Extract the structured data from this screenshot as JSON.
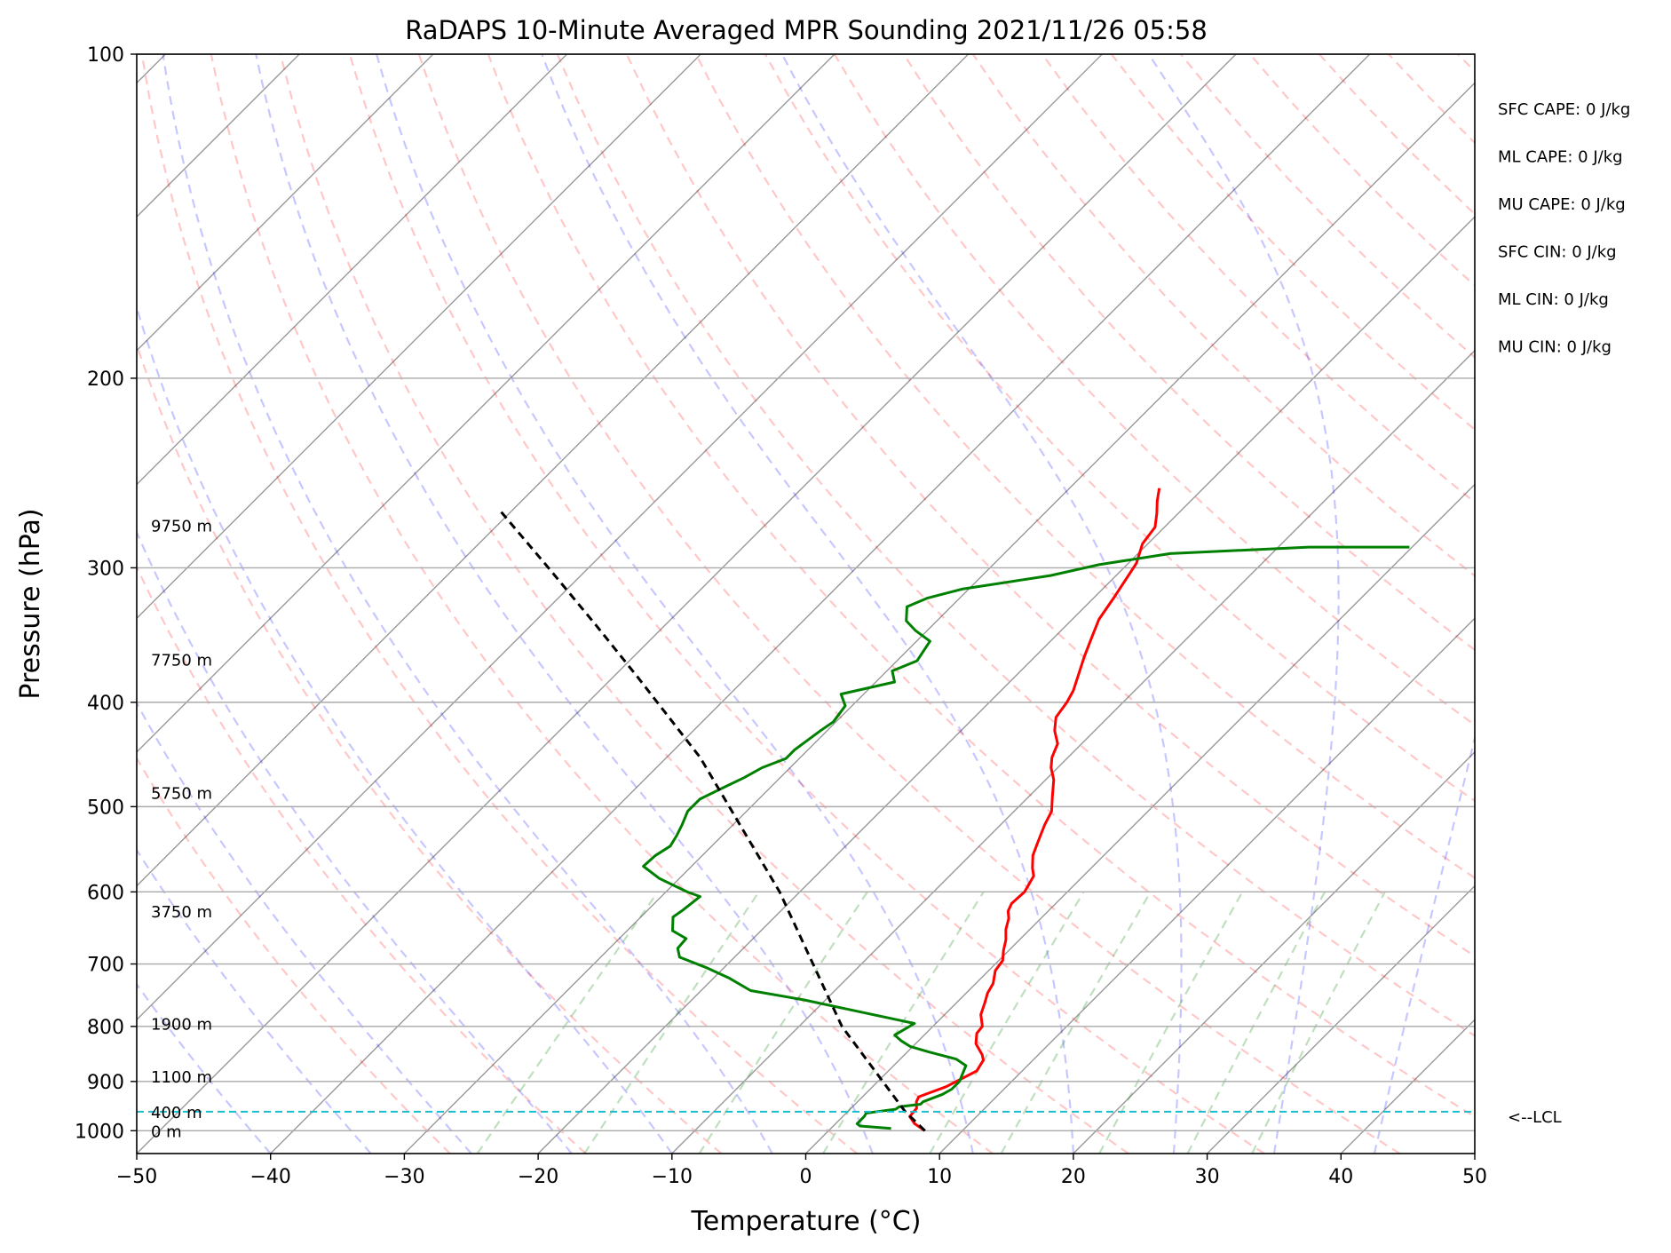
{
  "chart_data": {
    "type": "line",
    "title": "RaDAPS 10-Minute Averaged MPR Sounding 2021/11/26 05:58",
    "xlabel": "Temperature (°C)",
    "ylabel": "Pressure (hPa)",
    "xlim": [
      -50,
      50
    ],
    "ylim": [
      1050,
      100
    ],
    "y_scale": "log",
    "skew": "skew-T",
    "grid": true,
    "x_ticks": [
      "−50",
      "−40",
      "−30",
      "−20",
      "−10",
      "0",
      "10",
      "20",
      "30",
      "40",
      "50"
    ],
    "y_ticks": [
      "100",
      "200",
      "300",
      "400",
      "500",
      "600",
      "700",
      "800",
      "900",
      "1000"
    ],
    "height_labels": [
      {
        "text": "0 m",
        "p": 1000
      },
      {
        "text": "400 m",
        "p": 960
      },
      {
        "text": "1100 m",
        "p": 890
      },
      {
        "text": "1900 m",
        "p": 795
      },
      {
        "text": "3750 m",
        "p": 625
      },
      {
        "text": "5750 m",
        "p": 485
      },
      {
        "text": "7750 m",
        "p": 365
      },
      {
        "text": "9750 m",
        "p": 274
      }
    ],
    "indices": [
      "SFC CAPE: 0 J/kg",
      "ML CAPE: 0 J/kg",
      "MU CAPE: 0 J/kg",
      "SFC CIN: 0 J/kg",
      "ML CIN: 0 J/kg",
      "MU CIN: 0 J/kg"
    ],
    "lcl": {
      "label": "<--LCL",
      "p": 960,
      "color": "#17becf"
    },
    "series": [
      {
        "color": "#ff0000",
        "points": [
          [
            7.2,
            1000
          ],
          [
            5.9,
            985
          ],
          [
            5.0,
            970
          ],
          [
            4.9,
            953
          ],
          [
            4.4,
            940
          ],
          [
            4.2,
            930
          ],
          [
            5.5,
            910
          ],
          [
            6.6,
            880
          ],
          [
            6.3,
            860
          ],
          [
            5.8,
            850
          ],
          [
            4.5,
            830
          ],
          [
            3.8,
            812
          ],
          [
            3.7,
            800
          ],
          [
            2.7,
            780
          ],
          [
            2.1,
            760
          ],
          [
            1.6,
            745
          ],
          [
            1.3,
            730
          ],
          [
            0.5,
            710
          ],
          [
            0.3,
            695
          ],
          [
            -0.4,
            680
          ],
          [
            -1.0,
            665
          ],
          [
            -1.8,
            650
          ],
          [
            -2.4,
            635
          ],
          [
            -3.0,
            625
          ],
          [
            -3.3,
            615
          ],
          [
            -3.2,
            600
          ],
          [
            -3.7,
            580
          ],
          [
            -4.4,
            570
          ],
          [
            -5.3,
            555
          ],
          [
            -5.9,
            540
          ],
          [
            -6.7,
            520
          ],
          [
            -7.2,
            505
          ],
          [
            -8.2,
            490
          ],
          [
            -9.4,
            472
          ],
          [
            -10.5,
            460
          ],
          [
            -11.2,
            450
          ],
          [
            -11.8,
            437
          ],
          [
            -13.0,
            425
          ],
          [
            -13.9,
            413
          ],
          [
            -14.2,
            400
          ],
          [
            -14.6,
            390
          ],
          [
            -15.4,
            377
          ],
          [
            -16.3,
            363
          ],
          [
            -17.2,
            348
          ],
          [
            -18.0,
            335
          ],
          [
            -18.5,
            320
          ],
          [
            -19.0,
            307
          ],
          [
            -19.4,
            297
          ],
          [
            -20.4,
            285
          ],
          [
            -20.7,
            275
          ],
          [
            -21.6,
            267
          ],
          [
            -22.5,
            260
          ],
          [
            -23.3,
            253
          ]
        ]
      },
      {
        "color": "#008000",
        "points": [
          [
            4.5,
            995
          ],
          [
            2.0,
            990
          ],
          [
            1.6,
            985
          ],
          [
            1.6,
            970
          ],
          [
            1.5,
            963
          ],
          [
            2.2,
            960
          ],
          [
            3.4,
            955
          ],
          [
            3.5,
            950
          ],
          [
            4.9,
            945
          ],
          [
            4.9,
            940
          ],
          [
            5.8,
            925
          ],
          [
            6.1,
            915
          ],
          [
            6.1,
            900
          ],
          [
            5.4,
            870
          ],
          [
            4.2,
            858
          ],
          [
            1.6,
            845
          ],
          [
            -0.2,
            835
          ],
          [
            -1.3,
            825
          ],
          [
            -2.2,
            815
          ],
          [
            -1.6,
            795
          ],
          [
            -6.4,
            776
          ],
          [
            -11.6,
            756
          ],
          [
            -16.3,
            741
          ],
          [
            -18.9,
            721
          ],
          [
            -21.4,
            705
          ],
          [
            -24.1,
            690
          ],
          [
            -24.9,
            677
          ],
          [
            -25.0,
            663
          ],
          [
            -26.6,
            652
          ],
          [
            -27.6,
            633
          ],
          [
            -27.4,
            625
          ],
          [
            -27.1,
            606
          ],
          [
            -28.4,
            600
          ],
          [
            -31.5,
            583
          ],
          [
            -33.6,
            568
          ],
          [
            -33.5,
            555
          ],
          [
            -33.1,
            544
          ],
          [
            -33.4,
            532
          ],
          [
            -33.8,
            520
          ],
          [
            -34.4,
            505
          ],
          [
            -34.4,
            492
          ],
          [
            -33.5,
            480
          ],
          [
            -32.7,
            470
          ],
          [
            -32.1,
            460
          ],
          [
            -31.0,
            451
          ],
          [
            -31.0,
            443
          ],
          [
            -30.5,
            425
          ],
          [
            -30.2,
            417
          ],
          [
            -30.5,
            403
          ],
          [
            -31.7,
            393
          ],
          [
            -28.6,
            383
          ],
          [
            -29.6,
            374
          ],
          [
            -28.5,
            366
          ],
          [
            -29.0,
            351
          ],
          [
            -30.9,
            343
          ],
          [
            -32.3,
            336
          ],
          [
            -33.3,
            326
          ],
          [
            -32.4,
            320
          ],
          [
            -30.5,
            314
          ],
          [
            -24.9,
            305
          ],
          [
            -22.1,
            298
          ],
          [
            -17.6,
            291
          ],
          [
            -7.7,
            287
          ],
          [
            -3.1,
            287
          ],
          [
            -0.2,
            287
          ]
        ]
      },
      {
        "color": "#000000",
        "style": "dashed",
        "points": [
          [
            7.2,
            1000
          ],
          [
            4.3,
            960
          ],
          [
            -6.8,
            800
          ],
          [
            -21.5,
            600
          ],
          [
            -37.5,
            450
          ],
          [
            -48.0,
            380
          ],
          [
            -55.0,
            340
          ],
          [
            -63.0,
            300
          ],
          [
            -71.0,
            265
          ]
        ]
      }
    ]
  }
}
